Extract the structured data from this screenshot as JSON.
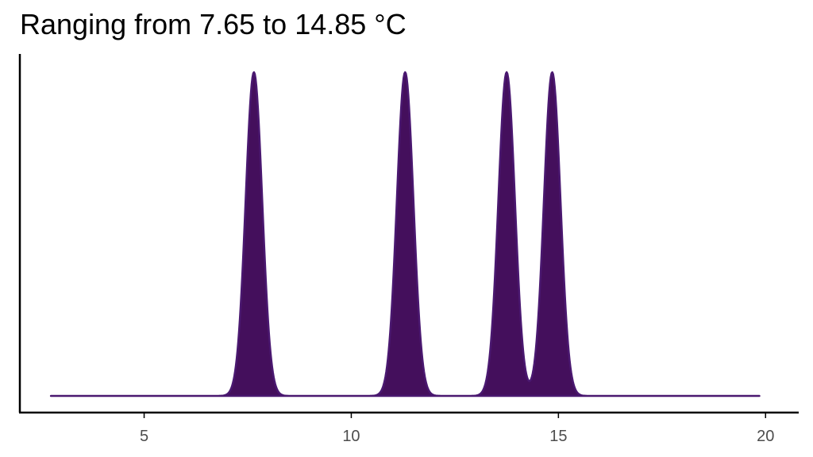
{
  "chart_data": {
    "type": "area",
    "title": "Ranging from 7.65 to 14.85 °C",
    "xlabel": "",
    "ylabel": "",
    "xlim": [
      2.0,
      20.8
    ],
    "x_ticks": [
      5,
      10,
      15,
      20
    ],
    "x_range": [
      2.75,
      19.85
    ],
    "peaks": [
      {
        "x": 7.65,
        "sd": 0.2,
        "relative_height": 1.0
      },
      {
        "x": 11.3,
        "sd": 0.2,
        "relative_height": 1.0
      },
      {
        "x": 13.75,
        "sd": 0.2,
        "relative_height": 1.0
      },
      {
        "x": 14.85,
        "sd": 0.2,
        "relative_height": 1.0
      }
    ],
    "fill_color": "#440f5c",
    "line_color": "#4a1870",
    "grid": false,
    "legend": "none"
  }
}
